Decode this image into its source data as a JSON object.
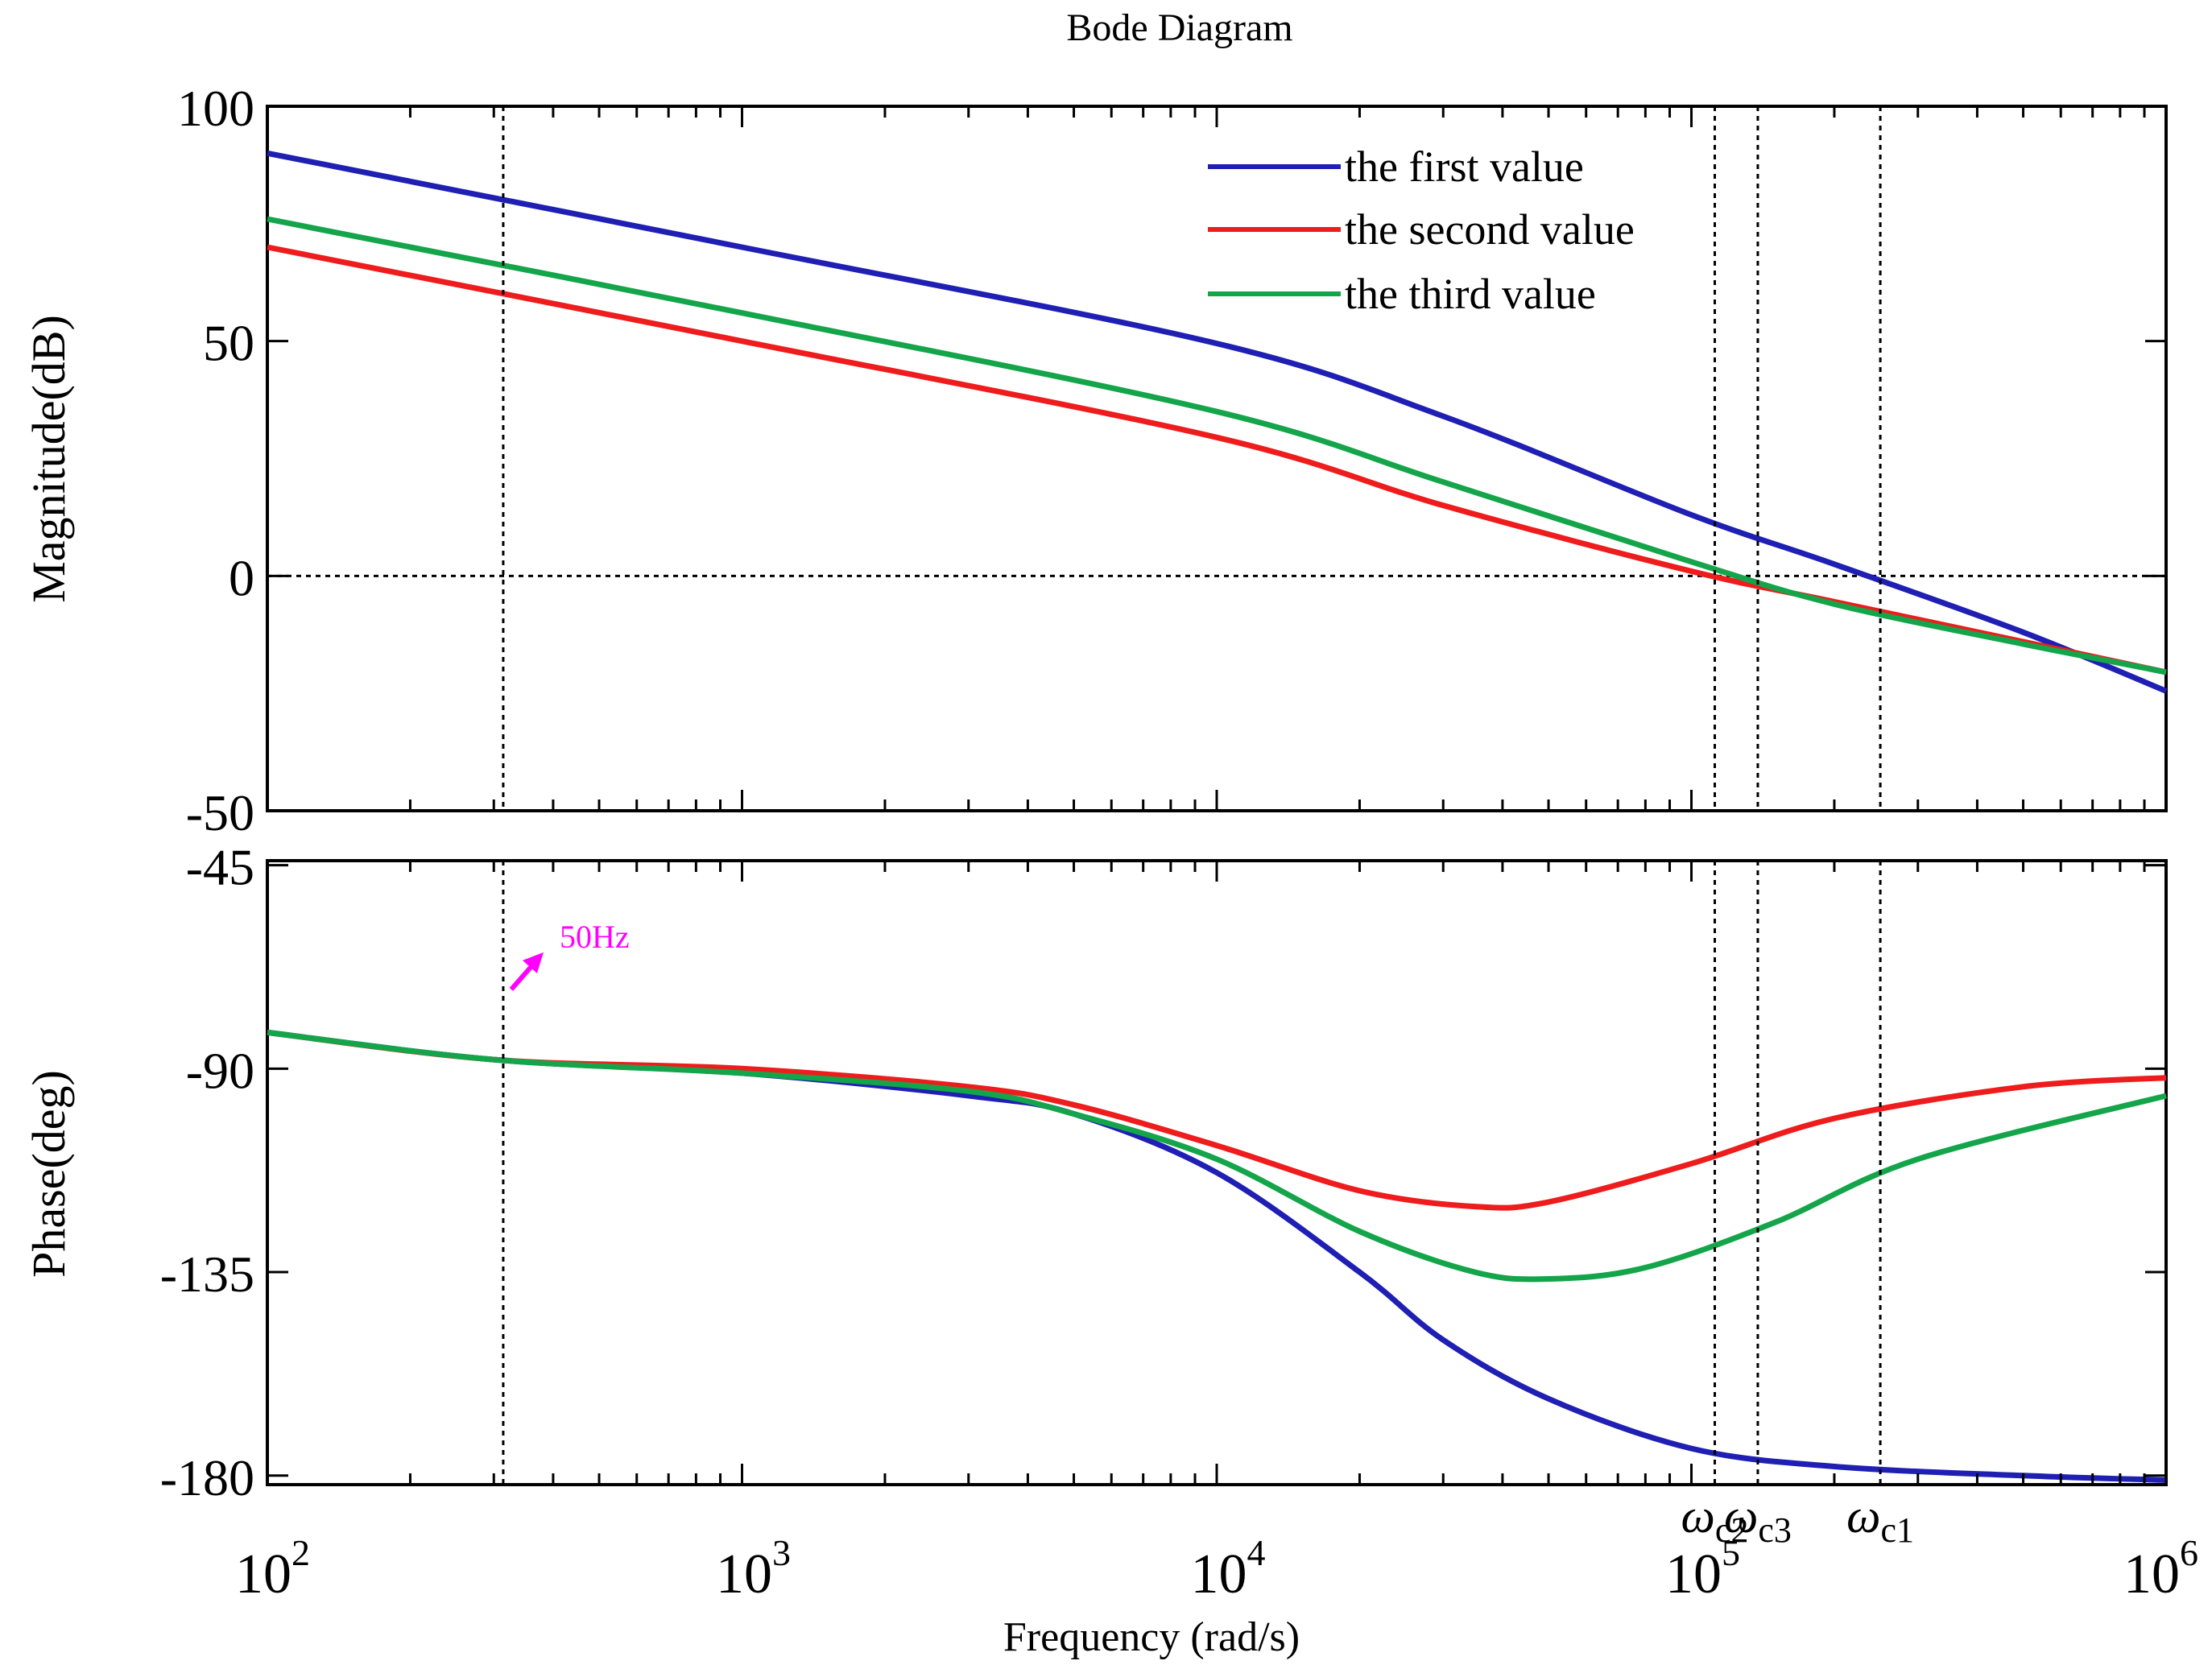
{
  "title": "Bode Diagram",
  "colors": {
    "first": "#1f1fb4",
    "second": "#ee1c1c",
    "third": "#14a54a",
    "annotation": "#ff00ff",
    "axis": "#000000",
    "marker_line": "#000000"
  },
  "chart_data": {
    "type": "line",
    "xscale": "log",
    "xlim": [
      100,
      1000000
    ],
    "xlabel": "Frequency  (rad/s)",
    "xticks": [
      {
        "value": 100,
        "base": "10",
        "exp": "2"
      },
      {
        "value": 1000,
        "base": "10",
        "exp": "3"
      },
      {
        "value": 10000,
        "base": "10",
        "exp": "4"
      },
      {
        "value": 100000,
        "base": "10",
        "exp": "5"
      },
      {
        "value": 1000000,
        "base": "10",
        "exp": "6"
      }
    ],
    "legend": {
      "position": "top-right",
      "entries": [
        "the  first value",
        "the second value",
        "the third value"
      ]
    },
    "markers": [
      {
        "x": 314,
        "label": "",
        "sub": ""
      },
      {
        "x": 112000,
        "label": "ω",
        "sub": "c2"
      },
      {
        "x": 138000,
        "label": "ω",
        "sub": "c3"
      },
      {
        "x": 250000,
        "label": "ω",
        "sub": "c1"
      }
    ],
    "annotation": {
      "text": "50Hz",
      "x": 314,
      "y": -65
    },
    "magnitude": {
      "ylabel": "Magnitude(dB)",
      "ylim": [
        -50,
        100
      ],
      "yticks": [
        100,
        50,
        0,
        -50
      ],
      "ytick_labels": [
        "100",
        "50",
        "0",
        "-50"
      ],
      "reference_line": 0,
      "series": [
        {
          "name": "the  first value",
          "key": "first",
          "x": [
            100,
            1000,
            10000,
            30000,
            100000,
            200000,
            500000,
            1000000
          ],
          "y": [
            90,
            70,
            49.5,
            34,
            13,
            2.5,
            -12,
            -24.5
          ]
        },
        {
          "name": "the second value",
          "key": "second",
          "x": [
            100,
            1000,
            10000,
            30000,
            100000,
            200000,
            500000,
            1000000
          ],
          "y": [
            70,
            50,
            29.5,
            15,
            1,
            -5.5,
            -14,
            -20.5
          ]
        },
        {
          "name": "the third value",
          "key": "third",
          "x": [
            100,
            1000,
            10000,
            30000,
            100000,
            200000,
            500000,
            1000000
          ],
          "y": [
            76,
            56,
            35,
            20,
            3,
            -6,
            -14.5,
            -20.5
          ]
        }
      ]
    },
    "phase": {
      "ylabel": "Phase(deg)",
      "ylim": [
        -182,
        -44
      ],
      "yticks": [
        -45,
        -90,
        -135,
        -180
      ],
      "ytick_labels": [
        "-45",
        "-90",
        "-135",
        "-180"
      ],
      "series": [
        {
          "name": "the  first value",
          "key": "first",
          "x": [
            100,
            300,
            1000,
            3000,
            5000,
            10000,
            20000,
            30000,
            50000,
            100000,
            200000,
            500000,
            1000000
          ],
          "y": [
            -82,
            -88,
            -91,
            -96,
            -100,
            -113,
            -135,
            -150,
            -163,
            -174,
            -178,
            -180,
            -181
          ]
        },
        {
          "name": "the second value",
          "key": "second",
          "x": [
            100,
            300,
            1000,
            3000,
            5000,
            10000,
            20000,
            35000,
            50000,
            100000,
            200000,
            500000,
            1000000
          ],
          "y": [
            -82,
            -88,
            -90,
            -94,
            -98,
            -107,
            -117,
            -120.5,
            -119.5,
            -111,
            -101,
            -94,
            -92
          ]
        },
        {
          "name": "the third value",
          "key": "third",
          "x": [
            100,
            300,
            1000,
            3000,
            5000,
            10000,
            20000,
            35000,
            50000,
            80000,
            150000,
            300000,
            1000000
          ],
          "y": [
            -82,
            -88,
            -91,
            -95,
            -100,
            -110,
            -126,
            -135,
            -136.5,
            -134,
            -124,
            -110,
            -96
          ]
        }
      ]
    }
  }
}
